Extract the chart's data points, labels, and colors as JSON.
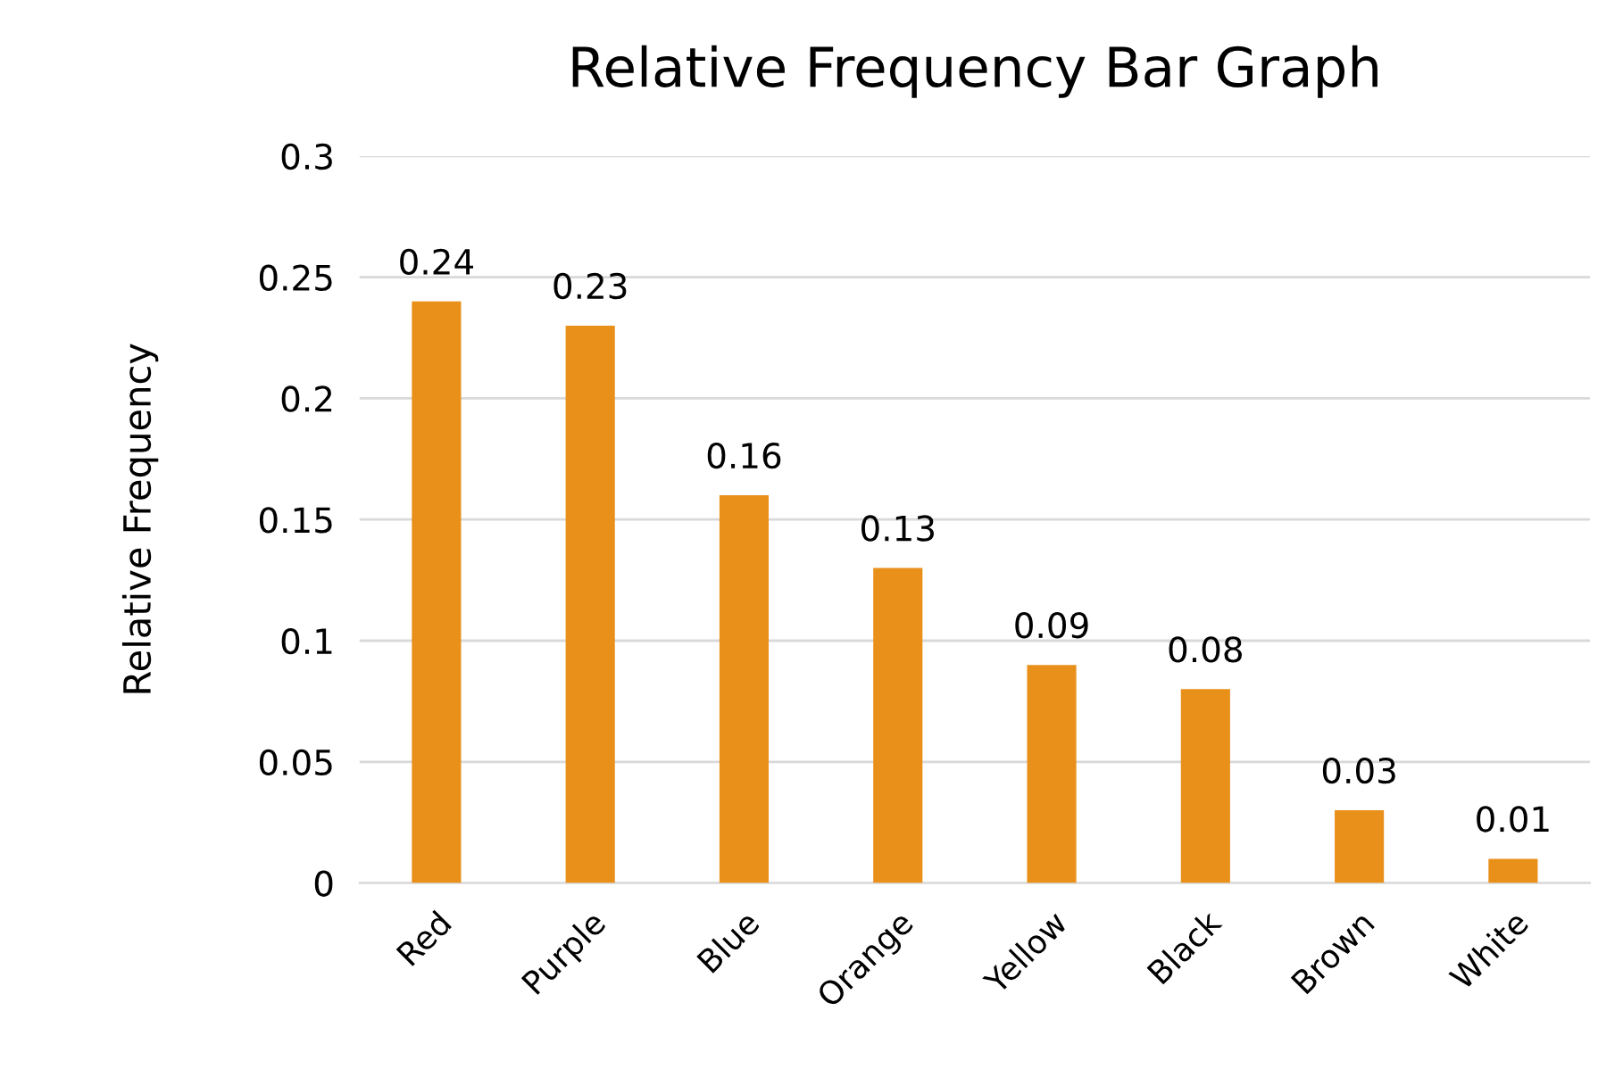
{
  "chart_data": {
    "type": "bar",
    "title": "Relative Frequency Bar Graph",
    "ylabel": "Relative Frequency",
    "categories": [
      "Red",
      "Purple",
      "Blue",
      "Orange",
      "Yellow",
      "Black",
      "Brown",
      "White"
    ],
    "values": [
      0.24,
      0.23,
      0.16,
      0.13,
      0.09,
      0.08,
      0.03,
      0.01
    ],
    "color": "#e8901a",
    "ylim": [
      0,
      0.3
    ],
    "yticks": [
      0,
      0.05,
      0.1,
      0.15,
      0.2,
      0.25,
      0.3
    ],
    "grid": "y",
    "data_labels": true,
    "legend": false
  }
}
